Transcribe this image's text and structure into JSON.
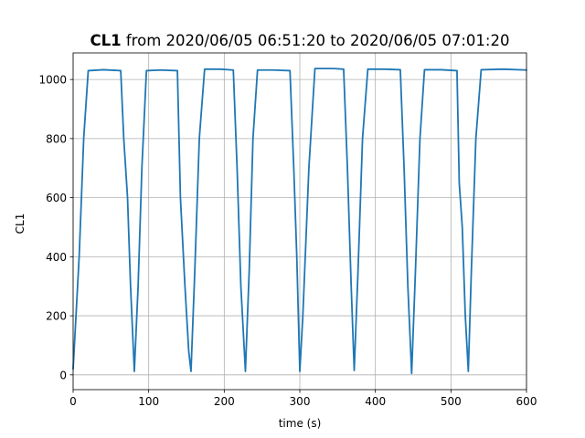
{
  "chart_data": {
    "type": "line",
    "title": {
      "series_bold": "CL1",
      "rest": " from 2020/06/05 06:51:20 to 2020/06/05 07:01:20"
    },
    "xlabel": "time (s)",
    "ylabel": "CL1",
    "xlim": [
      0,
      600
    ],
    "ylim": [
      -50,
      1090
    ],
    "x_ticks": [
      0,
      100,
      200,
      300,
      400,
      500,
      600
    ],
    "y_ticks": [
      0,
      200,
      400,
      600,
      800,
      1000
    ],
    "grid": true,
    "series": [
      {
        "color": "#1f77b4",
        "points": [
          [
            0,
            20
          ],
          [
            8,
            400
          ],
          [
            14,
            800
          ],
          [
            20,
            1030
          ],
          [
            40,
            1033
          ],
          [
            63,
            1030
          ],
          [
            67,
            800
          ],
          [
            72,
            600
          ],
          [
            76,
            300
          ],
          [
            81,
            12
          ],
          [
            86,
            300
          ],
          [
            91,
            700
          ],
          [
            97,
            1030
          ],
          [
            115,
            1032
          ],
          [
            138,
            1030
          ],
          [
            142,
            600
          ],
          [
            148,
            300
          ],
          [
            153,
            80
          ],
          [
            156,
            12
          ],
          [
            161,
            350
          ],
          [
            167,
            800
          ],
          [
            174,
            1035
          ],
          [
            195,
            1035
          ],
          [
            212,
            1032
          ],
          [
            217,
            700
          ],
          [
            222,
            300
          ],
          [
            228,
            12
          ],
          [
            233,
            350
          ],
          [
            238,
            800
          ],
          [
            244,
            1032
          ],
          [
            265,
            1032
          ],
          [
            287,
            1030
          ],
          [
            292,
            700
          ],
          [
            296,
            400
          ],
          [
            300,
            12
          ],
          [
            304,
            200
          ],
          [
            312,
            700
          ],
          [
            320,
            1037
          ],
          [
            345,
            1037
          ],
          [
            358,
            1035
          ],
          [
            363,
            700
          ],
          [
            368,
            300
          ],
          [
            372,
            15
          ],
          [
            377,
            350
          ],
          [
            383,
            800
          ],
          [
            390,
            1035
          ],
          [
            412,
            1035
          ],
          [
            433,
            1033
          ],
          [
            438,
            700
          ],
          [
            443,
            300
          ],
          [
            448,
            5
          ],
          [
            453,
            350
          ],
          [
            459,
            800
          ],
          [
            465,
            1033
          ],
          [
            487,
            1033
          ],
          [
            508,
            1030
          ],
          [
            511,
            650
          ],
          [
            515,
            500
          ],
          [
            519,
            200
          ],
          [
            523,
            12
          ],
          [
            527,
            350
          ],
          [
            533,
            800
          ],
          [
            540,
            1033
          ],
          [
            570,
            1035
          ],
          [
            600,
            1032
          ]
        ]
      }
    ]
  }
}
